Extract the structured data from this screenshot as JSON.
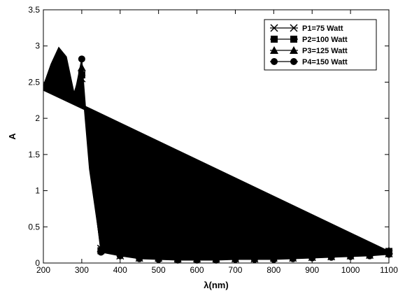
{
  "chart_data": {
    "type": "line",
    "title": "",
    "xlabel": "λ(nm)",
    "ylabel": "A",
    "xlim": [
      200,
      1100
    ],
    "ylim": [
      0,
      3.5
    ],
    "xticks": [
      200,
      300,
      400,
      500,
      600,
      700,
      800,
      900,
      1000,
      1100
    ],
    "yticks": [
      0,
      0.5,
      1,
      1.5,
      2,
      2.5,
      3,
      3.5
    ],
    "grid": false,
    "legend_position": "top-right",
    "colors": {
      "line": "#000000",
      "axis": "#000000",
      "background": "#ffffff"
    },
    "series": [
      {
        "name": "P1=75 Watt",
        "marker": "x",
        "x": [
          200,
          220,
          240,
          260,
          280,
          300,
          320,
          350,
          400,
          450,
          500,
          550,
          600,
          650,
          700,
          750,
          800,
          850,
          900,
          950,
          1000,
          1050,
          1100
        ],
        "y": [
          2.38,
          2.6,
          2.85,
          2.75,
          2.25,
          2.55,
          1.3,
          0.2,
          0.1,
          0.07,
          0.07,
          0.06,
          0.06,
          0.06,
          0.06,
          0.06,
          0.07,
          0.07,
          0.08,
          0.09,
          0.1,
          0.11,
          0.13
        ]
      },
      {
        "name": "P2=100 Watt",
        "marker": "square",
        "x": [
          200,
          220,
          240,
          260,
          280,
          300,
          320,
          350,
          400,
          450,
          500,
          550,
          600,
          650,
          700,
          750,
          800,
          850,
          900,
          950,
          1000,
          1050,
          1100
        ],
        "y": [
          2.4,
          2.7,
          2.9,
          2.8,
          2.3,
          2.6,
          1.4,
          0.17,
          0.14,
          0.12,
          0.1,
          0.09,
          0.09,
          0.09,
          0.1,
          0.1,
          0.11,
          0.11,
          0.12,
          0.13,
          0.14,
          0.15,
          0.16
        ]
      },
      {
        "name": "P3=125 Watt",
        "marker": "triangle",
        "x": [
          200,
          220,
          240,
          260,
          280,
          300,
          320,
          350,
          400,
          450,
          500,
          550,
          600,
          650,
          700,
          750,
          800,
          850,
          900,
          950,
          1000,
          1050,
          1100
        ],
        "y": [
          2.45,
          2.75,
          2.98,
          2.85,
          2.35,
          2.7,
          1.5,
          0.2,
          0.18,
          0.15,
          0.13,
          0.12,
          0.12,
          0.12,
          0.12,
          0.13,
          0.13,
          0.14,
          0.14,
          0.15,
          0.15,
          0.16,
          0.17
        ]
      },
      {
        "name": "P4=150 Watt",
        "marker": "circle",
        "x": [
          200,
          220,
          240,
          260,
          280,
          300,
          320,
          350,
          400,
          450,
          500,
          550,
          600,
          650,
          700,
          750,
          800,
          850,
          900,
          950,
          1000,
          1050,
          1100
        ],
        "y": [
          2.42,
          2.7,
          2.92,
          2.8,
          2.3,
          2.82,
          1.45,
          0.15,
          0.1,
          0.06,
          0.05,
          0.04,
          0.04,
          0.04,
          0.05,
          0.05,
          0.05,
          0.06,
          0.07,
          0.08,
          0.09,
          0.1,
          0.12
        ]
      }
    ]
  }
}
